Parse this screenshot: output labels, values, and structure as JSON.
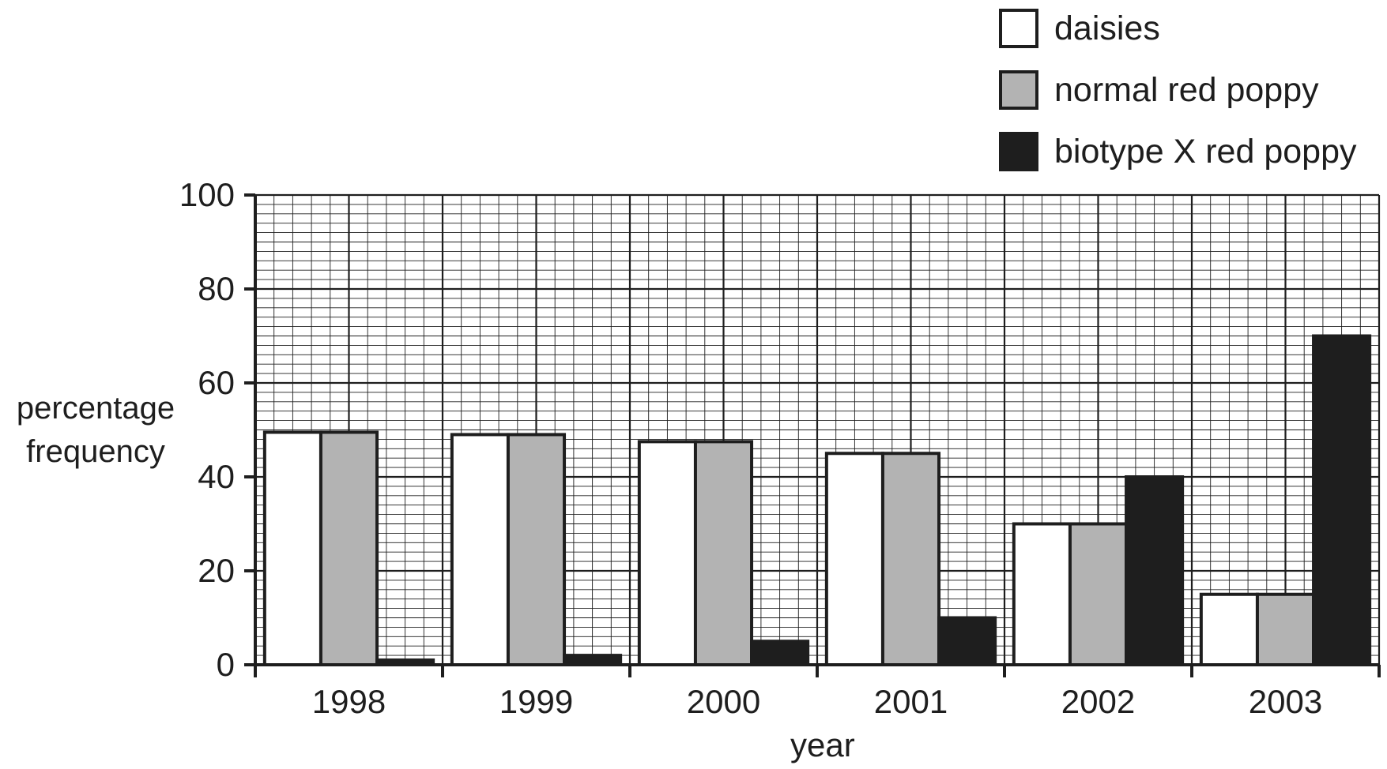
{
  "chart_data": {
    "type": "bar",
    "categories": [
      "1998",
      "1999",
      "2000",
      "2001",
      "2002",
      "2003"
    ],
    "series": [
      {
        "name": "daisies",
        "color": "#ffffff",
        "values": [
          49.5,
          49,
          47.5,
          45,
          30,
          15
        ]
      },
      {
        "name": "normal red poppy",
        "color": "#b3b3b3",
        "values": [
          49.5,
          49,
          47.5,
          45,
          30,
          15
        ]
      },
      {
        "name": "biotype X red poppy",
        "color": "#1e1e1e",
        "values": [
          1,
          2,
          5,
          10,
          40,
          70
        ]
      }
    ],
    "title": "",
    "xlabel": "year",
    "ylabel": "percentage frequency",
    "ylim": [
      0,
      100
    ],
    "yticks": [
      "0",
      "20",
      "40",
      "60",
      "80",
      "100"
    ],
    "grid": true,
    "legend_position": "top-right"
  }
}
